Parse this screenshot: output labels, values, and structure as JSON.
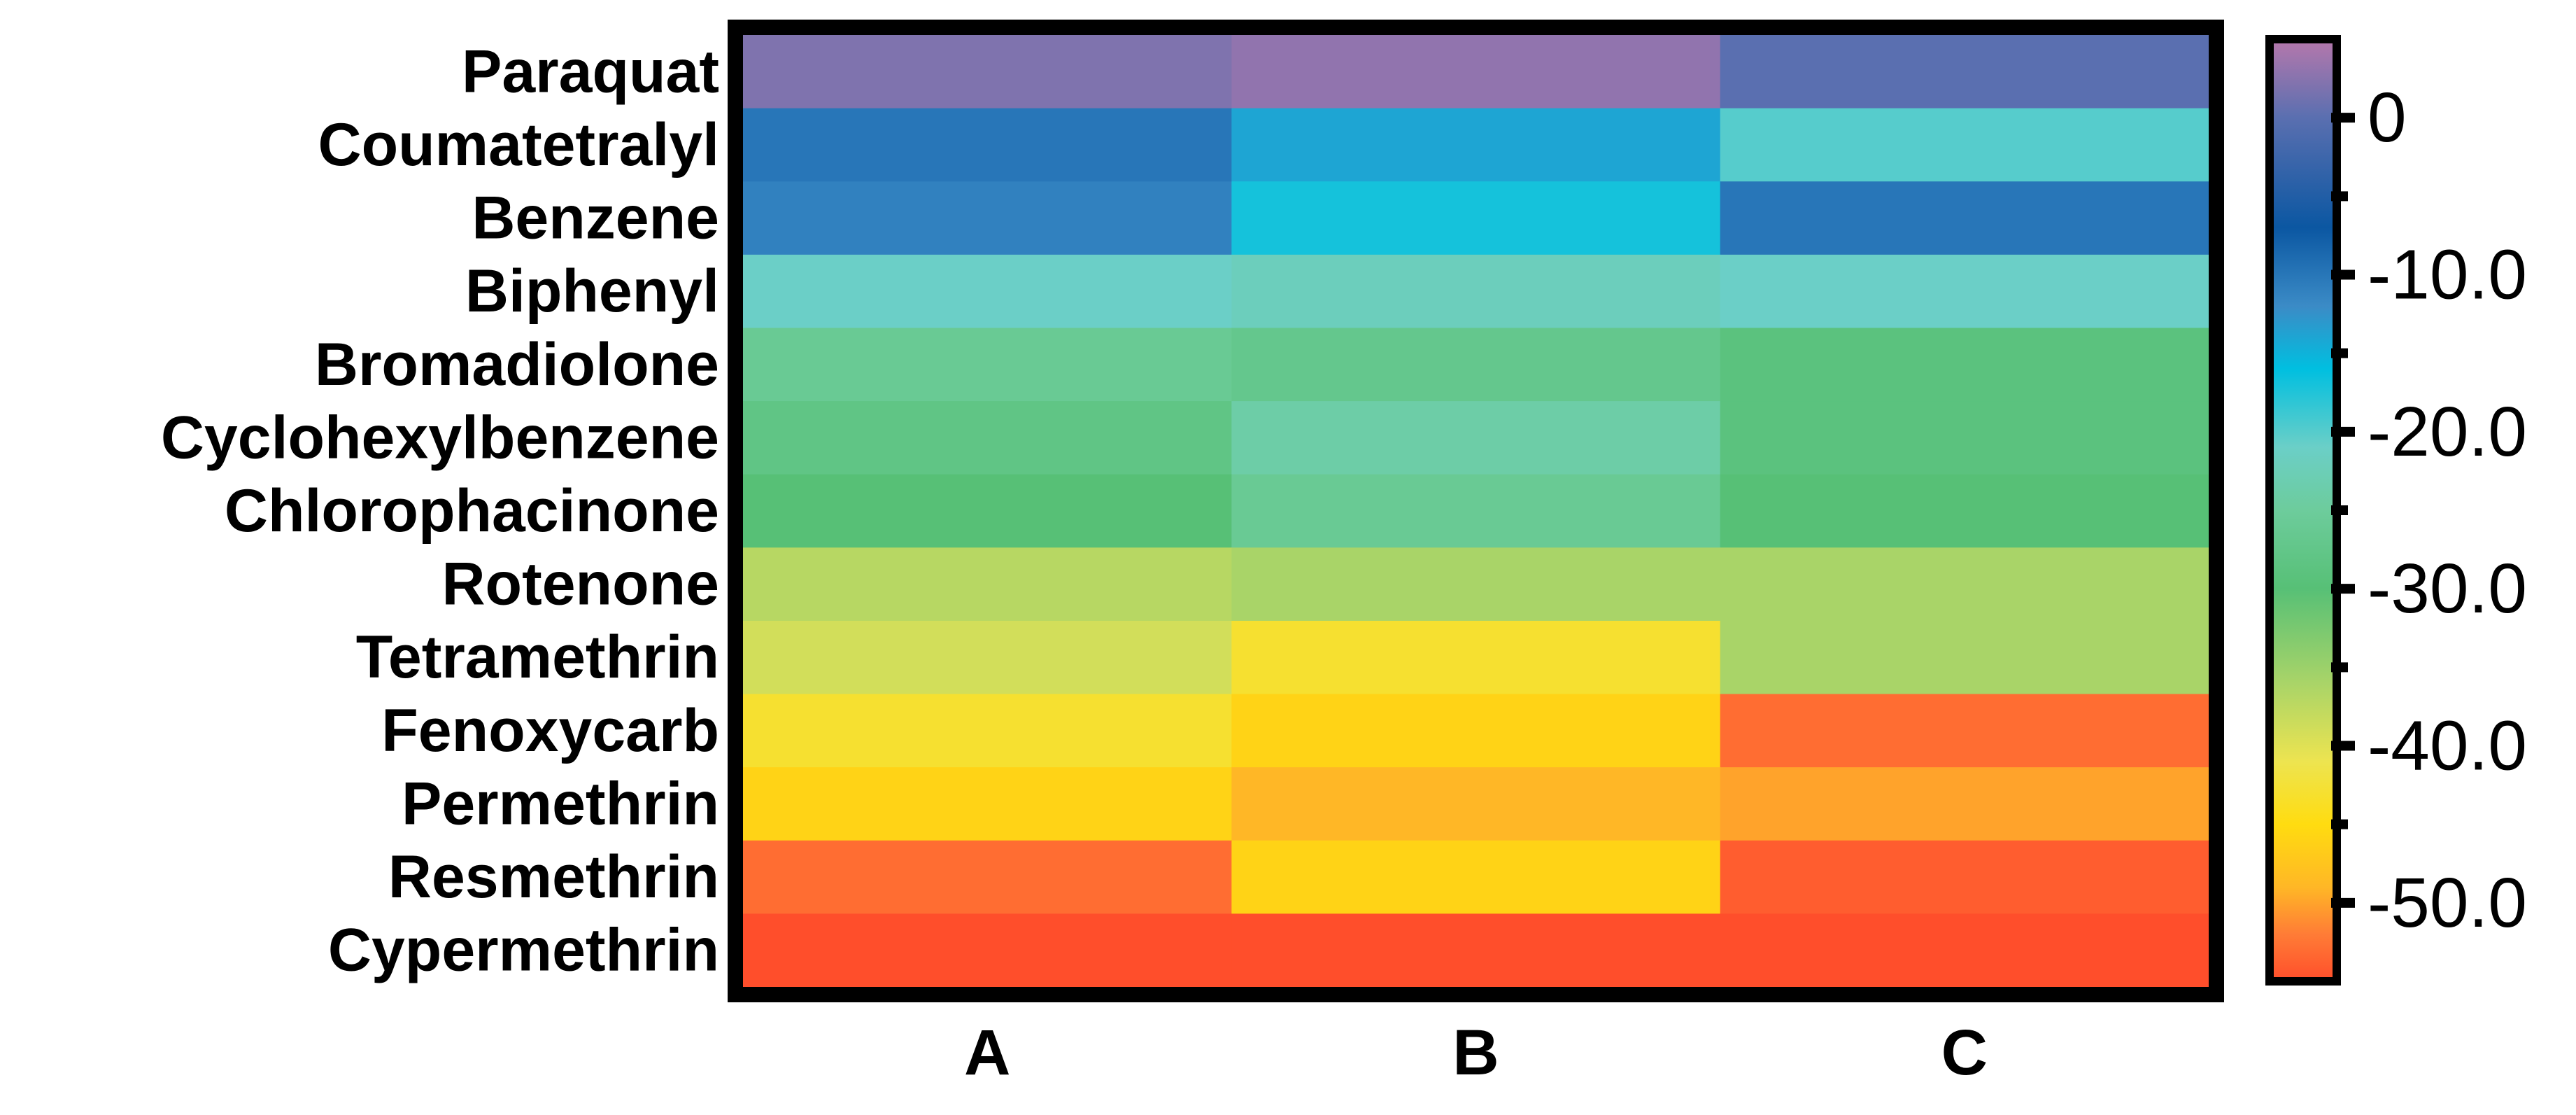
{
  "chart_data": {
    "type": "heatmap",
    "title": "",
    "xlabel": "",
    "ylabel": "",
    "columns": [
      "A",
      "B",
      "C"
    ],
    "rows": [
      "Paraquat",
      "Coumatetralyl",
      "Benzene",
      "Biphenyl",
      "Bromadiolone",
      "Cyclohexylbenzene",
      "Chlorophacinone",
      "Rotenone",
      "Tetramethrin",
      "Fenoxycarb",
      "Permethrin",
      "Resmethrin",
      "Cypermethrin"
    ],
    "values": [
      [
        2,
        3,
        0
      ],
      [
        -10,
        -14,
        -20
      ],
      [
        -11,
        -17,
        -10
      ],
      [
        -21,
        -22,
        -21
      ],
      [
        -26,
        -27,
        -29
      ],
      [
        -28,
        -24,
        -29
      ],
      [
        -30,
        -26,
        -30
      ],
      [
        -37,
        -36,
        -36
      ],
      [
        -39,
        -43,
        -36
      ],
      [
        -43,
        -46,
        -53
      ],
      [
        -46,
        -49,
        -50
      ],
      [
        -53,
        -46,
        -54
      ],
      [
        -55,
        -56,
        -56
      ]
    ],
    "colorbar": {
      "range": [
        -55,
        5
      ],
      "ticks": [
        0,
        -10,
        -20,
        -30,
        -40,
        -50
      ],
      "tick_labels": [
        "0",
        "-10.0",
        "-20.0",
        "-30.0",
        "-40.0",
        "-50.0"
      ],
      "stops": [
        {
          "value": 5,
          "color": "#b678ac"
        },
        {
          "value": 0,
          "color": "#5a6fb0"
        },
        {
          "value": -7,
          "color": "#0b57a2"
        },
        {
          "value": -12,
          "color": "#3b8bc6"
        },
        {
          "value": -16,
          "color": "#00bfe0"
        },
        {
          "value": -21,
          "color": "#6bcfc7"
        },
        {
          "value": -25,
          "color": "#6dcc9c"
        },
        {
          "value": -30,
          "color": "#57c076"
        },
        {
          "value": -36,
          "color": "#a9d468"
        },
        {
          "value": -41,
          "color": "#ede450"
        },
        {
          "value": -45,
          "color": "#ffdc10"
        },
        {
          "value": -49,
          "color": "#ffb726"
        },
        {
          "value": -52,
          "color": "#ff7c36"
        },
        {
          "value": -55,
          "color": "#ff4e2b"
        }
      ]
    },
    "legend": "right",
    "grid": false
  }
}
